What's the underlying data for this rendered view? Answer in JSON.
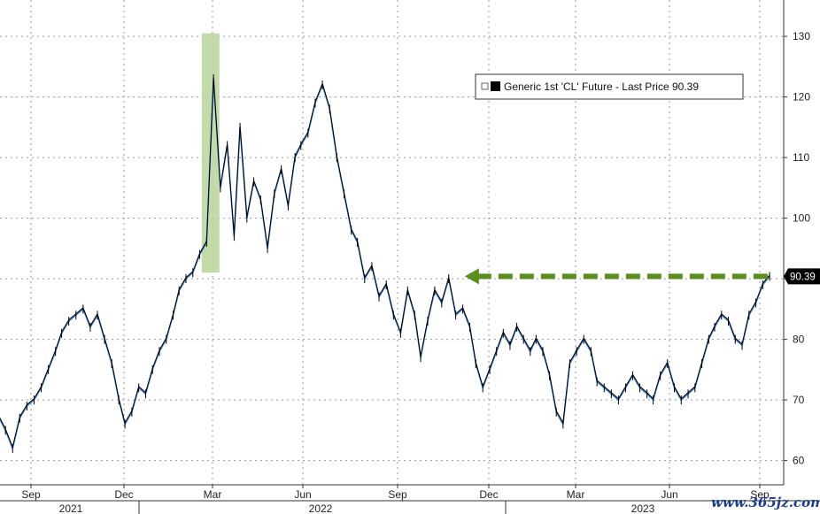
{
  "chart_data": {
    "type": "line",
    "ylim": [
      56,
      136
    ],
    "yticks": [
      60,
      70,
      80,
      90,
      100,
      110,
      120,
      130
    ],
    "grid": true,
    "legend_position": "top-right",
    "months": [
      "Sep",
      "Dec",
      "Mar",
      "Jun",
      "Sep",
      "Dec",
      "Mar",
      "Jun",
      "Sep"
    ],
    "years": [
      "2021",
      "2022",
      "2023"
    ],
    "series": [
      {
        "name": "Generic 1st 'CL' Future - Last Price 90.39",
        "color": "#000000",
        "highlight_color": "#3b7dd8",
        "x_start": "2021-08-01",
        "x_end": "2023-09-11",
        "values": [
          67,
          65,
          62,
          67,
          69,
          70,
          72,
          75,
          78,
          81,
          83,
          84,
          85,
          82,
          84,
          80,
          76,
          70,
          66,
          68,
          72,
          71,
          75,
          78,
          80,
          84,
          88,
          90,
          91,
          94,
          96,
          123,
          105,
          112,
          97,
          115,
          100,
          106,
          103,
          95,
          104,
          108,
          102,
          110,
          112,
          114,
          119,
          122,
          118,
          110,
          104,
          98,
          96,
          90,
          92,
          87,
          89,
          84,
          81,
          88,
          84,
          77,
          83,
          88,
          86,
          90,
          84,
          85,
          82,
          76,
          72,
          75,
          78,
          81,
          79,
          82,
          80,
          78,
          80,
          78,
          74,
          68,
          66,
          76,
          78,
          80,
          78,
          73,
          72,
          71,
          70,
          72,
          74,
          72,
          71,
          70,
          74,
          76,
          72,
          70,
          71,
          72,
          76,
          80,
          82,
          84,
          83,
          80,
          79,
          84,
          86,
          89,
          90.39
        ]
      }
    ],
    "highlight_band": {
      "x_from": "2022-02-18",
      "x_to": "2022-03-08"
    },
    "reference_line": {
      "value": 90.39,
      "from": "2022-11-07",
      "to": "2023-09-11",
      "color": "#5a8f1c",
      "style": "dashed-arrow"
    },
    "last_price_label": "90.39"
  },
  "watermark": "www.365jz.com"
}
